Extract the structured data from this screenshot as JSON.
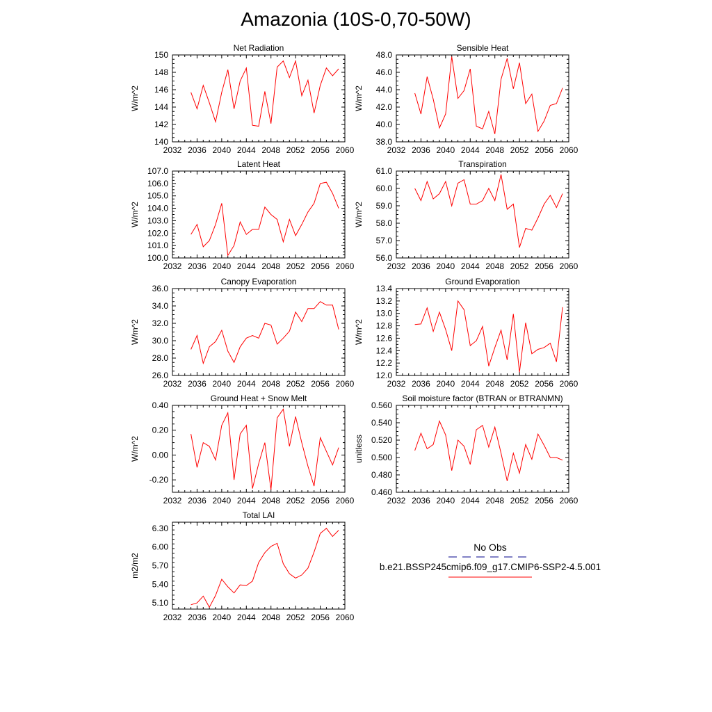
{
  "title": "Amazonia (10S-0,70-50W)",
  "colors": {
    "model_line": "#ff0000",
    "obs_line": "#00008b",
    "axis": "#000000"
  },
  "legend": {
    "obs_label": "No Obs",
    "model_label": "b.e21.BSSP245cmip6.f09_g17.CMIP6-SSP2-4.5.001"
  },
  "chart_data": [
    {
      "type": "line",
      "title": "Net Radiation",
      "ylabel": "W/m^2",
      "xlim": [
        2032,
        2060
      ],
      "ylim": [
        140,
        150
      ],
      "xticks": [
        2032,
        2036,
        2040,
        2044,
        2048,
        2052,
        2056,
        2060
      ],
      "yticks": [
        140,
        142,
        144,
        146,
        148,
        150
      ],
      "ytick_labels": [
        "140",
        "142",
        "144",
        "146",
        "148",
        "150"
      ],
      "series": [
        {
          "x": [
            2035,
            2036,
            2037,
            2038,
            2039,
            2040,
            2041,
            2042,
            2043,
            2044,
            2045,
            2046,
            2047,
            2048,
            2049,
            2050,
            2051,
            2052,
            2053,
            2054,
            2055,
            2056,
            2057,
            2058,
            2059
          ],
          "values": [
            145.7,
            143.8,
            146.5,
            144.5,
            142.3,
            145.7,
            148.3,
            143.8,
            147.0,
            148.5,
            141.9,
            141.8,
            145.8,
            142.1,
            148.6,
            149.3,
            147.4,
            149.3,
            145.3,
            147.1,
            143.3,
            146.5,
            148.5,
            147.6,
            148.4
          ]
        }
      ]
    },
    {
      "type": "line",
      "title": "Sensible Heat",
      "ylabel": "W/m^2",
      "xlim": [
        2032,
        2060
      ],
      "ylim": [
        38,
        48
      ],
      "xticks": [
        2032,
        2036,
        2040,
        2044,
        2048,
        2052,
        2056,
        2060
      ],
      "yticks": [
        38,
        40,
        42,
        44,
        46,
        48
      ],
      "ytick_labels": [
        "38.0",
        "40.0",
        "42.0",
        "44.0",
        "46.0",
        "48.0"
      ],
      "series": [
        {
          "x": [
            2035,
            2036,
            2037,
            2038,
            2039,
            2040,
            2041,
            2042,
            2043,
            2044,
            2045,
            2046,
            2047,
            2048,
            2049,
            2050,
            2051,
            2052,
            2053,
            2054,
            2055,
            2056,
            2057,
            2058,
            2059
          ],
          "values": [
            43.6,
            41.2,
            45.5,
            42.9,
            39.6,
            41.2,
            47.8,
            43.0,
            43.9,
            46.4,
            39.8,
            39.5,
            41.5,
            38.9,
            45.2,
            47.6,
            44.1,
            47.1,
            42.4,
            43.5,
            39.2,
            40.4,
            42.2,
            42.4,
            44.2
          ]
        }
      ]
    },
    {
      "type": "line",
      "title": "Latent Heat",
      "ylabel": "W/m^2",
      "xlim": [
        2032,
        2060
      ],
      "ylim": [
        100,
        107
      ],
      "xticks": [
        2032,
        2036,
        2040,
        2044,
        2048,
        2052,
        2056,
        2060
      ],
      "yticks": [
        100,
        101,
        102,
        103,
        104,
        105,
        106,
        107
      ],
      "ytick_labels": [
        "100.0",
        "101.0",
        "102.0",
        "103.0",
        "104.0",
        "105.0",
        "106.0",
        "107.0"
      ],
      "series": [
        {
          "x": [
            2035,
            2036,
            2037,
            2038,
            2039,
            2040,
            2041,
            2042,
            2043,
            2044,
            2045,
            2046,
            2047,
            2048,
            2049,
            2050,
            2051,
            2052,
            2053,
            2054,
            2055,
            2056,
            2057,
            2058,
            2059
          ],
          "values": [
            101.9,
            102.7,
            100.9,
            101.4,
            102.7,
            104.4,
            100.2,
            101.0,
            102.9,
            101.9,
            102.3,
            102.3,
            104.1,
            103.5,
            103.1,
            101.3,
            103.1,
            101.8,
            102.7,
            103.7,
            104.4,
            106.0,
            106.1,
            105.2,
            104.0
          ]
        }
      ]
    },
    {
      "type": "line",
      "title": "Transpiration",
      "ylabel": "W/m^2",
      "xlim": [
        2032,
        2060
      ],
      "ylim": [
        56,
        61
      ],
      "xticks": [
        2032,
        2036,
        2040,
        2044,
        2048,
        2052,
        2056,
        2060
      ],
      "yticks": [
        56,
        57,
        58,
        59,
        60,
        61
      ],
      "ytick_labels": [
        "56.0",
        "57.0",
        "58.0",
        "59.0",
        "60.0",
        "61.0"
      ],
      "series": [
        {
          "x": [
            2035,
            2036,
            2037,
            2038,
            2039,
            2040,
            2041,
            2042,
            2043,
            2044,
            2045,
            2046,
            2047,
            2048,
            2049,
            2050,
            2051,
            2052,
            2053,
            2054,
            2055,
            2056,
            2057,
            2058,
            2059
          ],
          "values": [
            60.0,
            59.3,
            60.4,
            59.4,
            59.7,
            60.4,
            59.0,
            60.3,
            60.5,
            59.1,
            59.1,
            59.3,
            60.0,
            59.3,
            60.8,
            58.8,
            59.1,
            56.6,
            57.7,
            57.6,
            58.3,
            59.1,
            59.6,
            58.9,
            59.7
          ]
        }
      ]
    },
    {
      "type": "line",
      "title": "Canopy Evaporation",
      "ylabel": "W/m^2",
      "xlim": [
        2032,
        2060
      ],
      "ylim": [
        26,
        36
      ],
      "xticks": [
        2032,
        2036,
        2040,
        2044,
        2048,
        2052,
        2056,
        2060
      ],
      "yticks": [
        26,
        28,
        30,
        32,
        34,
        36
      ],
      "ytick_labels": [
        "26.0",
        "28.0",
        "30.0",
        "32.0",
        "34.0",
        "36.0"
      ],
      "series": [
        {
          "x": [
            2035,
            2036,
            2037,
            2038,
            2039,
            2040,
            2041,
            2042,
            2043,
            2044,
            2045,
            2046,
            2047,
            2048,
            2049,
            2050,
            2051,
            2052,
            2053,
            2054,
            2055,
            2056,
            2057,
            2058,
            2059
          ],
          "values": [
            29.0,
            30.6,
            27.4,
            29.3,
            29.9,
            31.2,
            28.8,
            27.5,
            29.3,
            30.3,
            30.6,
            30.3,
            32.0,
            31.8,
            29.6,
            30.3,
            31.1,
            33.3,
            32.2,
            33.7,
            33.7,
            34.5,
            34.1,
            34.1,
            31.3
          ]
        }
      ]
    },
    {
      "type": "line",
      "title": "Ground Evaporation",
      "ylabel": "W/m^2",
      "xlim": [
        2032,
        2060
      ],
      "ylim": [
        12.0,
        13.4
      ],
      "xticks": [
        2032,
        2036,
        2040,
        2044,
        2048,
        2052,
        2056,
        2060
      ],
      "yticks": [
        12.0,
        12.2,
        12.4,
        12.6,
        12.8,
        13.0,
        13.2,
        13.4
      ],
      "ytick_labels": [
        "12.0",
        "12.2",
        "12.4",
        "12.6",
        "12.8",
        "13.0",
        "13.2",
        "13.4"
      ],
      "series": [
        {
          "x": [
            2035,
            2036,
            2037,
            2038,
            2039,
            2040,
            2041,
            2042,
            2043,
            2044,
            2045,
            2046,
            2047,
            2048,
            2049,
            2050,
            2051,
            2052,
            2053,
            2054,
            2055,
            2056,
            2057,
            2058,
            2059
          ],
          "values": [
            12.82,
            12.83,
            13.09,
            12.71,
            13.02,
            12.74,
            12.4,
            13.2,
            13.06,
            12.48,
            12.56,
            12.79,
            12.15,
            12.45,
            12.73,
            12.25,
            12.99,
            12.05,
            12.85,
            12.35,
            12.42,
            12.45,
            12.52,
            12.22,
            13.1
          ]
        }
      ]
    },
    {
      "type": "line",
      "title": "Ground Heat + Snow Melt",
      "ylabel": "W/m^2",
      "xlim": [
        2032,
        2060
      ],
      "ylim": [
        -0.3,
        0.4
      ],
      "xticks": [
        2032,
        2036,
        2040,
        2044,
        2048,
        2052,
        2056,
        2060
      ],
      "yticks": [
        -0.2,
        0.0,
        0.2,
        0.4
      ],
      "ytick_labels": [
        "-0.20",
        "0.00",
        "0.20",
        "0.40"
      ],
      "series": [
        {
          "x": [
            2035,
            2036,
            2037,
            2038,
            2039,
            2040,
            2041,
            2042,
            2043,
            2044,
            2045,
            2046,
            2047,
            2048,
            2049,
            2050,
            2051,
            2052,
            2053,
            2054,
            2055,
            2056,
            2057,
            2058,
            2059
          ],
          "values": [
            0.17,
            -0.1,
            0.1,
            0.07,
            -0.04,
            0.24,
            0.34,
            -0.2,
            0.17,
            0.24,
            -0.27,
            -0.07,
            0.1,
            -0.28,
            0.3,
            0.37,
            0.07,
            0.31,
            0.1,
            -0.09,
            -0.25,
            0.14,
            0.03,
            -0.08,
            0.06
          ]
        }
      ]
    },
    {
      "type": "line",
      "title": "Soil moisture factor (BTRAN or BTRANMN)",
      "ylabel": "unitless",
      "xlim": [
        2032,
        2060
      ],
      "ylim": [
        0.46,
        0.56
      ],
      "xticks": [
        2032,
        2036,
        2040,
        2044,
        2048,
        2052,
        2056,
        2060
      ],
      "yticks": [
        0.46,
        0.48,
        0.5,
        0.52,
        0.54,
        0.56
      ],
      "ytick_labels": [
        "0.460",
        "0.480",
        "0.500",
        "0.520",
        "0.540",
        "0.560"
      ],
      "series": [
        {
          "x": [
            2035,
            2036,
            2037,
            2038,
            2039,
            2040,
            2041,
            2042,
            2043,
            2044,
            2045,
            2046,
            2047,
            2048,
            2049,
            2050,
            2051,
            2052,
            2053,
            2054,
            2055,
            2056,
            2057,
            2058,
            2059
          ],
          "values": [
            0.508,
            0.528,
            0.51,
            0.515,
            0.542,
            0.526,
            0.485,
            0.52,
            0.513,
            0.492,
            0.532,
            0.537,
            0.512,
            0.535,
            0.505,
            0.473,
            0.505,
            0.482,
            0.515,
            0.498,
            0.527,
            0.514,
            0.5,
            0.5,
            0.497
          ]
        }
      ]
    },
    {
      "type": "line",
      "title": "Total LAI",
      "ylabel": "m2/m2",
      "xlim": [
        2032,
        2060
      ],
      "ylim": [
        5.0,
        6.4
      ],
      "xticks": [
        2032,
        2036,
        2040,
        2044,
        2048,
        2052,
        2056,
        2060
      ],
      "yticks": [
        5.1,
        5.4,
        5.7,
        6.0,
        6.3
      ],
      "ytick_labels": [
        "5.10",
        "5.40",
        "5.70",
        "6.00",
        "6.30"
      ],
      "series": [
        {
          "x": [
            2035,
            2036,
            2037,
            2038,
            2039,
            2040,
            2041,
            2042,
            2043,
            2044,
            2045,
            2046,
            2047,
            2048,
            2049,
            2050,
            2051,
            2052,
            2053,
            2054,
            2055,
            2056,
            2057,
            2058,
            2059
          ],
          "values": [
            5.07,
            5.1,
            5.21,
            5.03,
            5.22,
            5.48,
            5.36,
            5.26,
            5.39,
            5.38,
            5.45,
            5.75,
            5.91,
            6.01,
            6.06,
            5.73,
            5.57,
            5.5,
            5.55,
            5.66,
            5.92,
            6.22,
            6.3,
            6.17,
            6.27
          ]
        }
      ]
    }
  ]
}
